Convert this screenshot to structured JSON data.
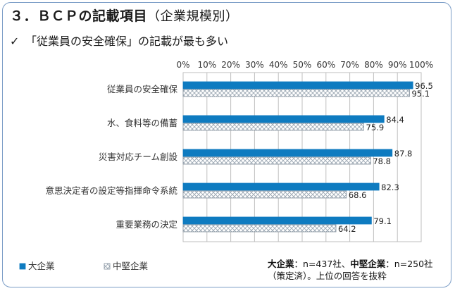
{
  "title": {
    "main": "３．ＢＣＰの記載項目",
    "sub": "（企業規模別）"
  },
  "subtitle": {
    "mark": "✓",
    "text": "「従業員の安全確保」の記載が最も多い"
  },
  "notes": {
    "line1_a": "大企業",
    "line1_b": "：n=437社、",
    "line1_c": "中堅企業",
    "line1_d": "：n=250社",
    "line2": "（策定済）。上位の回答を抜粋"
  },
  "colors": {
    "large": "#0e7bc0",
    "mid_fill": "#ffffff",
    "mid_pattern": "#9aa6b2",
    "grid": "#bfbfbf",
    "frame": "#7a9cc6"
  },
  "chart_data": {
    "type": "bar",
    "orientation": "horizontal",
    "categories": [
      "従業員の安全確保",
      "水、食料等の備蓄",
      "災害対応チーム創設",
      "意思決定者の設定等指揮命令系統",
      "重要業務の決定"
    ],
    "series": [
      {
        "name": "大企業",
        "values": [
          96.5,
          84.4,
          87.8,
          82.3,
          79.1
        ],
        "style": "solid"
      },
      {
        "name": "中堅企業",
        "values": [
          95.1,
          75.9,
          78.8,
          68.6,
          64.2
        ],
        "style": "crosshatch"
      }
    ],
    "xlim": [
      0,
      100
    ],
    "xticks": [
      "0%",
      "10%",
      "20%",
      "30%",
      "40%",
      "50%",
      "60%",
      "70%",
      "80%",
      "90%",
      "100%"
    ],
    "tick_values": [
      0,
      10,
      20,
      30,
      40,
      50,
      60,
      70,
      80,
      90,
      100
    ],
    "grid": true,
    "legend": "bottom-left"
  }
}
